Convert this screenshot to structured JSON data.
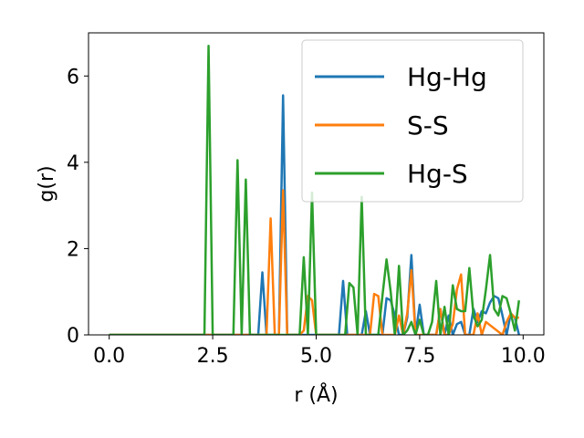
{
  "chart_data": {
    "type": "line",
    "xlabel": "r (Å)",
    "ylabel": "g(r)",
    "xlim": [
      -0.5,
      10.5
    ],
    "ylim": [
      0,
      7
    ],
    "xticks": [
      0.0,
      2.5,
      5.0,
      7.5,
      10.0
    ],
    "xtick_labels": [
      "0.0",
      "2.5",
      "5.0",
      "7.5",
      "10.0"
    ],
    "yticks": [
      0,
      2,
      4,
      6
    ],
    "ytick_labels": [
      "0",
      "2",
      "4",
      "6"
    ],
    "grid": false,
    "legend_position": "upper-right",
    "series": [
      {
        "name": "Hg-Hg",
        "color": "#1f77b4",
        "x": [
          0,
          3.6,
          3.7,
          3.8,
          4.1,
          4.2,
          4.3,
          5.55,
          5.65,
          5.75,
          6.1,
          6.2,
          6.3,
          6.6,
          6.7,
          6.8,
          6.9,
          7.0,
          7.1,
          7.2,
          7.3,
          7.4,
          7.5,
          7.6,
          7.9,
          8.0,
          8.1,
          8.2,
          8.3,
          8.4,
          8.5,
          8.6,
          8.7,
          8.8,
          8.9,
          9.0,
          9.1,
          9.2,
          9.3,
          9.4,
          9.5,
          9.6,
          9.7,
          9.8,
          9.9
        ],
        "y": [
          0,
          0,
          1.45,
          0,
          0,
          5.55,
          0,
          0,
          1.25,
          0,
          0,
          0.55,
          0,
          0,
          0.85,
          0.8,
          0.45,
          0,
          0,
          0.4,
          1.85,
          0,
          0.7,
          0,
          0,
          0.6,
          0,
          0.45,
          0,
          0.25,
          0.3,
          0,
          0,
          0.6,
          0.3,
          0.55,
          0.5,
          0.75,
          0.9,
          0.85,
          0.45,
          0,
          0.5,
          0.4,
          0
        ]
      },
      {
        "name": "S-S",
        "color": "#ff7f0e",
        "x": [
          0,
          3.8,
          3.9,
          4.0,
          4.1,
          4.2,
          4.3,
          4.6,
          4.7,
          4.8,
          4.9,
          5.0,
          6.3,
          6.4,
          6.5,
          6.6,
          6.9,
          7.0,
          7.1,
          7.2,
          7.3,
          7.4,
          7.9,
          8.0,
          8.1,
          8.2,
          8.3,
          8.4,
          8.5,
          8.6,
          8.8,
          8.9,
          9.0,
          9.1,
          9.5,
          9.6,
          9.7,
          9.8,
          9.9
        ],
        "y": [
          0,
          0,
          2.7,
          0,
          0,
          3.35,
          0,
          0,
          0.1,
          0.9,
          0.8,
          0,
          0,
          0.95,
          0.9,
          0,
          0,
          0.45,
          0,
          0.5,
          1.5,
          0,
          0,
          0.6,
          0,
          0,
          0.25,
          1.05,
          1.4,
          0,
          0,
          0.5,
          0,
          0.3,
          0,
          0.3,
          0.5,
          0.4,
          0.4
        ]
      },
      {
        "name": "Hg-S",
        "color": "#2ca02c",
        "x": [
          0,
          2.3,
          2.4,
          2.5,
          3.0,
          3.1,
          3.2,
          3.3,
          3.4,
          4.6,
          4.7,
          4.8,
          4.9,
          5.0,
          5.7,
          5.8,
          5.9,
          6.0,
          6.1,
          6.2,
          6.5,
          6.6,
          6.7,
          6.8,
          6.9,
          7.0,
          7.1,
          7.2,
          7.3,
          7.4,
          7.5,
          7.6,
          7.7,
          7.8,
          7.9,
          8.0,
          8.1,
          8.2,
          8.3,
          8.4,
          8.5,
          8.6,
          8.7,
          8.8,
          8.9,
          9.0,
          9.1,
          9.2,
          9.3,
          9.4,
          9.5,
          9.6,
          9.7,
          9.8,
          9.9
        ],
        "y": [
          0,
          0,
          6.7,
          0,
          0,
          4.05,
          0,
          3.6,
          0,
          0,
          1.8,
          0,
          3.3,
          0,
          0,
          1.2,
          1.1,
          0,
          3.2,
          0,
          0,
          0.9,
          1.75,
          1.0,
          0,
          1.6,
          0,
          0.1,
          0.3,
          0,
          0.35,
          0,
          0,
          0.3,
          1.25,
          0,
          0.65,
          0,
          1.15,
          0.6,
          0.55,
          0.55,
          1.55,
          0.45,
          0.2,
          0.35,
          1.05,
          1.85,
          0.6,
          0.45,
          0.9,
          0.85,
          0.5,
          0.1,
          0.8
        ]
      }
    ]
  }
}
